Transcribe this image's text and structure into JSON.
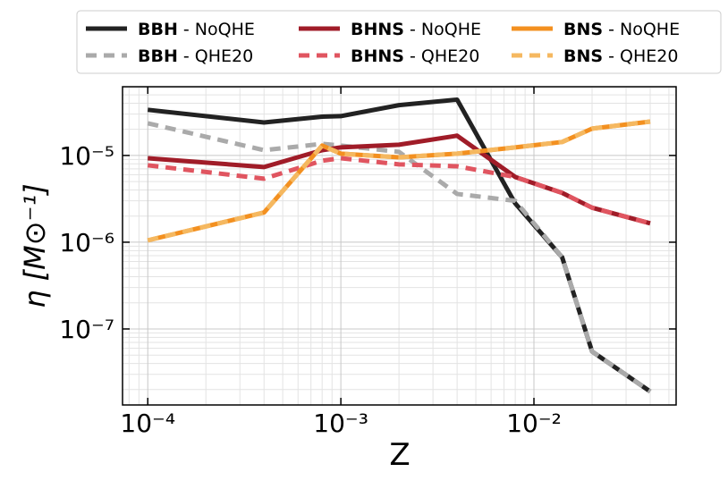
{
  "chart_data": {
    "type": "line",
    "xlabel": "Z",
    "ylabel": "η [M⊙⁻¹]",
    "x": [
      0.0001,
      0.0004,
      0.0008,
      0.001,
      0.002,
      0.004,
      0.008,
      0.014,
      0.02,
      0.04
    ],
    "series": [
      {
        "name": "BBH - NoQHE",
        "color": "#222222",
        "dash": false,
        "values": [
          3.36e-05,
          2.4e-05,
          2.8e-05,
          2.84e-05,
          3.8e-05,
          4.4e-05,
          2.8e-06,
          6.7e-07,
          5.5e-08,
          1.9e-08
        ]
      },
      {
        "name": "BBH - QHE20",
        "color": "#aaaaaa",
        "dash": true,
        "values": [
          2.35e-05,
          1.15e-05,
          1.36e-05,
          1.3e-05,
          1.1e-05,
          3.6e-06,
          3e-06,
          6.7e-07,
          5.5e-08,
          1.9e-08
        ]
      },
      {
        "name": "BHNS - NoQHE",
        "color": "#a01c28",
        "dash": false,
        "values": [
          9.3e-06,
          7.35e-06,
          1.15e-05,
          1.24e-05,
          1.33e-05,
          1.69e-05,
          5.65e-06,
          3.7e-06,
          2.5e-06,
          1.65e-06
        ]
      },
      {
        "name": "BHNS - QHE20",
        "color": "#e05560",
        "dash": true,
        "values": [
          7.7e-06,
          5.4e-06,
          8.7e-06,
          9.3e-06,
          7.9e-06,
          7.5e-06,
          5.65e-06,
          3.7e-06,
          2.5e-06,
          1.65e-06
        ]
      },
      {
        "name": "BNS - NoQHE",
        "color": "#f39020",
        "dash": false,
        "values": [
          1.05e-06,
          2.2e-06,
          1.3e-05,
          1.05e-05,
          9.5e-06,
          1.05e-05,
          1.24e-05,
          1.43e-05,
          2.04e-05,
          2.46e-05
        ]
      },
      {
        "name": "BNS - QHE20",
        "color": "#f5b860",
        "dash": true,
        "values": [
          1.05e-06,
          2.2e-06,
          1.3e-05,
          1.05e-05,
          9.5e-06,
          1.05e-05,
          1.24e-05,
          1.43e-05,
          2.04e-05,
          2.46e-05
        ]
      }
    ],
    "xscale": "log",
    "yscale": "log",
    "xlim": [
      7.4e-05,
      0.0545
    ],
    "ylim": [
      1.33e-08,
      6.2e-05
    ],
    "xticks": [
      {
        "value": 0.0001,
        "label": "10⁻⁴"
      },
      {
        "value": 0.001,
        "label": "10⁻³"
      },
      {
        "value": 0.01,
        "label": "10⁻²"
      }
    ],
    "yticks": [
      {
        "value": 1e-07,
        "label": "10⁻⁷"
      },
      {
        "value": 1e-06,
        "label": "10⁻⁶"
      },
      {
        "value": 1e-05,
        "label": "10⁻⁵"
      }
    ],
    "grid": true,
    "legend": "top"
  }
}
